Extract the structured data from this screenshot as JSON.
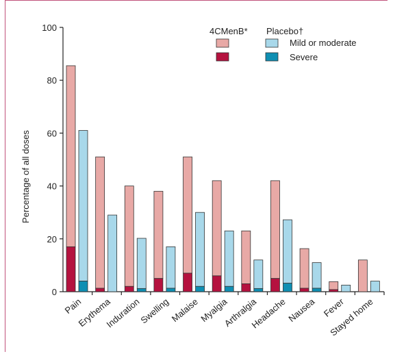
{
  "chart_data": {
    "type": "bar",
    "ylabel": "Percentage of all doses",
    "ylim": [
      0,
      100
    ],
    "yticks": [
      0,
      20,
      40,
      60,
      80,
      100
    ],
    "categories": [
      "Pain",
      "Erythema",
      "Induration",
      "Swelling",
      "Malaise",
      "Myalgia",
      "Arthralgia",
      "Headache",
      "Nausea",
      "Fever",
      "Stayed home"
    ],
    "groups": [
      "4CMenB*",
      "Placebo†"
    ],
    "levels": [
      "Mild or moderate",
      "Severe"
    ],
    "series": [
      {
        "group": "4CMenB*",
        "level": "Severe",
        "values": [
          17,
          1.3,
          2,
          5,
          7,
          6,
          3,
          5,
          1.3,
          0.8,
          0
        ]
      },
      {
        "group": "4CMenB*",
        "level": "Mild or moderate",
        "values": [
          68.5,
          49.7,
          38,
          33,
          44,
          36,
          20,
          37,
          15,
          3,
          12
        ]
      },
      {
        "group": "Placebo†",
        "level": "Severe",
        "values": [
          4,
          0,
          1.2,
          1.3,
          2,
          2,
          1.2,
          3.2,
          1.3,
          0,
          0
        ]
      },
      {
        "group": "Placebo†",
        "level": "Mild or moderate",
        "values": [
          57,
          29,
          19,
          15.7,
          28,
          21,
          10.8,
          24,
          9.7,
          2.5,
          4
        ]
      }
    ],
    "colors": {
      "vaccine_mild": "#e8a9a6",
      "vaccine_severe": "#b5123f",
      "placebo_mild": "#a8d8ea",
      "placebo_severe": "#0f8fb3",
      "bar_edge": "#333333"
    }
  }
}
